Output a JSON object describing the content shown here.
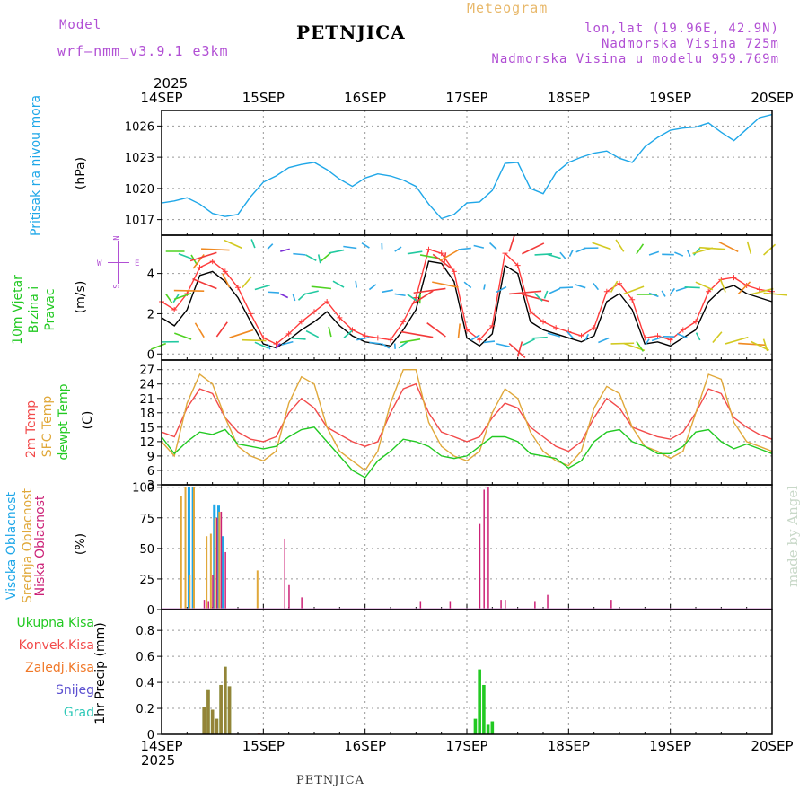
{
  "header": {
    "model_label": "Model",
    "model_name": "wrf—nmm_v3.9.1 e3km",
    "title": "PETNJICA",
    "meteogram_label": "Meteogram",
    "lonlat": "lon,lat (19.96E, 42.9N)",
    "altitude": "Nadmorska Visina 725m",
    "model_altitude": "Nadmorska Visina u modelu 959.769m",
    "year_top": "2025",
    "year_bottom": "2025",
    "footer_title": "PETNJICA",
    "credit": "made by Angel"
  },
  "dates": [
    "14SEP",
    "15SEP",
    "16SEP",
    "17SEP",
    "18SEP",
    "19SEP",
    "20SEP"
  ],
  "colors": {
    "pressure": "#1fa7e8",
    "wind_speed": "#000000",
    "wind_gust": "#ff3b3b",
    "t2m": "#f24a4a",
    "tsfc": "#e0a83a",
    "dewpoint": "#22c922",
    "high_cloud": "#1fa7e8",
    "mid_cloud": "#e0a83a",
    "low_cloud": "#cc2277",
    "total_precip": "#22c922",
    "conv_precip": "#f24a4a",
    "freezing": "#f07828",
    "snow": "#5b4fd0",
    "graupel": "#2fc9b8"
  },
  "chart_data": [
    {
      "type": "line",
      "panel": "pressure",
      "title": "Pritisak na nivou mora",
      "ylabel": "(hPa)",
      "x_unit": "hours since 14SEP 00UTC",
      "xlim": [
        0,
        144
      ],
      "ylim": [
        1015.5,
        1027.5
      ],
      "yticks": [
        1017,
        1020,
        1023,
        1026
      ],
      "series": [
        {
          "name": "MSLP",
          "x": [
            0,
            3,
            6,
            9,
            12,
            15,
            18,
            21,
            24,
            27,
            30,
            33,
            36,
            39,
            42,
            45,
            48,
            51,
            54,
            57,
            60,
            63,
            66,
            69,
            72,
            75,
            78,
            81,
            84,
            87,
            90,
            93,
            96,
            99,
            102,
            105,
            108,
            111,
            114,
            117,
            120,
            123,
            126,
            129,
            132,
            135,
            138,
            141,
            144
          ],
          "values": [
            1018.6,
            1018.8,
            1019.1,
            1018.5,
            1017.6,
            1017.3,
            1017.5,
            1019.2,
            1020.6,
            1021.2,
            1022.0,
            1022.3,
            1022.5,
            1021.8,
            1020.9,
            1020.2,
            1021.0,
            1021.4,
            1021.2,
            1020.8,
            1020.2,
            1018.5,
            1017.1,
            1017.5,
            1018.6,
            1018.7,
            1019.8,
            1022.4,
            1022.5,
            1020.0,
            1019.5,
            1021.5,
            1022.5,
            1023.0,
            1023.4,
            1023.6,
            1022.9,
            1022.5,
            1024.0,
            1024.9,
            1025.6,
            1025.8,
            1025.9,
            1026.3,
            1025.4,
            1024.6,
            1025.7,
            1026.8,
            1027.1
          ]
        }
      ]
    },
    {
      "type": "line",
      "panel": "wind",
      "title": "10m Vjetar Brzina i Pravac",
      "ylabel": "(m/s)",
      "compass": [
        "N",
        "W",
        "E",
        "S"
      ],
      "xlim": [
        0,
        144
      ],
      "ylim": [
        -0.3,
        5.9
      ],
      "yticks": [
        0,
        2,
        4
      ],
      "series": [
        {
          "name": "wind speed",
          "x": [
            0,
            3,
            6,
            9,
            12,
            15,
            18,
            21,
            24,
            27,
            30,
            33,
            36,
            39,
            42,
            45,
            48,
            51,
            54,
            57,
            60,
            63,
            66,
            69,
            72,
            75,
            78,
            81,
            84,
            87,
            90,
            93,
            96,
            99,
            102,
            105,
            108,
            111,
            114,
            117,
            120,
            123,
            126,
            129,
            132,
            135,
            138,
            141,
            144
          ],
          "values": [
            1.8,
            1.4,
            2.2,
            3.9,
            4.1,
            3.6,
            2.8,
            1.6,
            0.5,
            0.3,
            0.7,
            1.2,
            1.6,
            2.1,
            1.4,
            0.9,
            0.6,
            0.5,
            0.4,
            1.2,
            2.2,
            4.6,
            4.5,
            3.6,
            0.8,
            0.4,
            1.0,
            4.4,
            4.0,
            1.6,
            1.2,
            1.0,
            0.8,
            0.6,
            0.9,
            2.6,
            3.0,
            2.2,
            0.5,
            0.6,
            0.4,
            0.8,
            1.2,
            2.6,
            3.2,
            3.4,
            3.0,
            2.8,
            2.6
          ]
        },
        {
          "name": "wind gust",
          "x": [
            0,
            3,
            6,
            9,
            12,
            15,
            18,
            21,
            24,
            27,
            30,
            33,
            36,
            39,
            42,
            45,
            48,
            51,
            54,
            57,
            60,
            63,
            66,
            69,
            72,
            75,
            78,
            81,
            84,
            87,
            90,
            93,
            96,
            99,
            102,
            105,
            108,
            111,
            114,
            117,
            120,
            123,
            126,
            129,
            132,
            135,
            138,
            141,
            144
          ],
          "values": [
            2.6,
            2.2,
            3.0,
            4.3,
            4.6,
            4.1,
            3.3,
            2.0,
            0.8,
            0.5,
            1.0,
            1.6,
            2.1,
            2.6,
            1.8,
            1.2,
            0.9,
            0.8,
            0.7,
            1.6,
            2.8,
            5.2,
            5.0,
            4.1,
            1.2,
            0.7,
            1.4,
            5.0,
            4.4,
            2.1,
            1.6,
            1.3,
            1.1,
            0.9,
            1.3,
            3.1,
            3.5,
            2.7,
            0.8,
            0.9,
            0.7,
            1.2,
            1.6,
            3.1,
            3.7,
            3.8,
            3.4,
            3.2,
            3.1
          ]
        }
      ]
    },
    {
      "type": "line",
      "panel": "temperature",
      "labels": [
        "2m Temp",
        "SFC Temp",
        "dewpt Temp"
      ],
      "ylabel": "(C)",
      "xlim": [
        0,
        144
      ],
      "ylim": [
        3,
        29
      ],
      "yticks": [
        3,
        6,
        9,
        12,
        15,
        18,
        21,
        24,
        27
      ],
      "series": [
        {
          "name": "2m Temp",
          "x": [
            0,
            3,
            6,
            9,
            12,
            15,
            18,
            21,
            24,
            27,
            30,
            33,
            36,
            39,
            42,
            45,
            48,
            51,
            54,
            57,
            60,
            63,
            66,
            69,
            72,
            75,
            78,
            81,
            84,
            87,
            90,
            93,
            96,
            99,
            102,
            105,
            108,
            111,
            114,
            117,
            120,
            123,
            126,
            129,
            132,
            135,
            138,
            141,
            144
          ],
          "values": [
            14,
            13,
            19,
            23,
            22,
            17,
            14,
            12.5,
            12,
            13,
            18,
            21,
            19,
            15,
            13.5,
            12,
            11,
            12,
            18,
            23,
            24,
            18,
            14,
            13,
            12,
            13,
            17,
            20,
            19,
            15,
            13,
            11,
            10,
            12,
            17,
            21,
            19,
            15,
            14,
            13,
            12.5,
            14,
            18,
            23,
            22,
            17,
            15,
            13.5,
            12.5
          ]
        },
        {
          "name": "SFC Temp",
          "x": [
            0,
            3,
            6,
            9,
            12,
            15,
            18,
            21,
            24,
            27,
            30,
            33,
            36,
            39,
            42,
            45,
            48,
            51,
            54,
            57,
            60,
            63,
            66,
            69,
            72,
            75,
            78,
            81,
            84,
            87,
            90,
            93,
            96,
            99,
            102,
            105,
            108,
            111,
            114,
            117,
            120,
            123,
            126,
            129,
            132,
            135,
            138,
            141,
            144
          ],
          "values": [
            12,
            9,
            20,
            26,
            24,
            17,
            11,
            9,
            8,
            10,
            20,
            25.5,
            24,
            15,
            10,
            8,
            6,
            10,
            20,
            27,
            27,
            16,
            11,
            9,
            8,
            10,
            18,
            23,
            21,
            14,
            10,
            8,
            7,
            10,
            19,
            23.5,
            22,
            15,
            11,
            10,
            8.5,
            10,
            18,
            26,
            25,
            16,
            12,
            11,
            10
          ]
        },
        {
          "name": "dewpt Temp",
          "x": [
            0,
            3,
            6,
            9,
            12,
            15,
            18,
            21,
            24,
            27,
            30,
            33,
            36,
            39,
            42,
            45,
            48,
            51,
            54,
            57,
            60,
            63,
            66,
            69,
            72,
            75,
            78,
            81,
            84,
            87,
            90,
            93,
            96,
            99,
            102,
            105,
            108,
            111,
            114,
            117,
            120,
            123,
            126,
            129,
            132,
            135,
            138,
            141,
            144
          ],
          "values": [
            13,
            9.5,
            12,
            14,
            13.5,
            14.5,
            11.5,
            11,
            10.5,
            11,
            13,
            14.5,
            15,
            12,
            9,
            6,
            4.5,
            8,
            10,
            12.5,
            12,
            11,
            9,
            8.5,
            9,
            11,
            13,
            13,
            12,
            9.5,
            9,
            8.5,
            6.5,
            8,
            12,
            14,
            14.5,
            12,
            11,
            9.5,
            9.5,
            11,
            14,
            14.5,
            12,
            10.5,
            11.5,
            10.5,
            9.5
          ]
        }
      ]
    },
    {
      "type": "bar",
      "panel": "cloud",
      "labels": [
        "Visoka Oblacnost",
        "Srednja Oblacnost",
        "Niska Oblacnost"
      ],
      "ylabel": "(%)",
      "xlim": [
        0,
        144
      ],
      "ylim": [
        0,
        102
      ],
      "yticks": [
        0,
        25,
        50,
        75,
        100
      ],
      "series": [
        {
          "name": "Visoka Oblacnost",
          "x": [
            6,
            7,
            12,
            13,
            14
          ],
          "values": [
            100,
            100,
            86,
            85,
            60
          ]
        },
        {
          "name": "Srednja Oblacnost",
          "x": [
            5,
            6,
            7,
            8,
            11,
            12,
            13,
            14,
            23
          ],
          "values": [
            93,
            100,
            28,
            100,
            60,
            62,
            75,
            80,
            32
          ]
        },
        {
          "name": "Niska Oblacnost",
          "x": [
            10,
            11,
            12,
            13,
            14,
            15,
            29,
            30,
            33,
            61,
            68,
            75,
            76,
            77,
            80,
            81,
            88,
            91,
            106
          ],
          "values": [
            8,
            7,
            28,
            75,
            80,
            47,
            58,
            20,
            10,
            7,
            7,
            70,
            98,
            100,
            8,
            8,
            7,
            12,
            8
          ]
        }
      ]
    },
    {
      "type": "bar",
      "panel": "precipitation",
      "labels": [
        "Ukupna Kisa",
        "Konvek.Kisa",
        "Zaledj.Kisa",
        "Snijeg",
        "Grad"
      ],
      "ylabel": "1hr Precip (mm)",
      "xlim": [
        0,
        144
      ],
      "ylim": [
        0,
        0.96
      ],
      "yticks": [
        0,
        0.2,
        0.4,
        0.6,
        0.8
      ],
      "series": [
        {
          "name": "Ukupna Kisa",
          "x": [
            10,
            11,
            12,
            13,
            14,
            15,
            16,
            74,
            75,
            76,
            77,
            78
          ],
          "values": [
            0.21,
            0.34,
            0.19,
            0.12,
            0.38,
            0.52,
            0.37,
            0.12,
            0.5,
            0.38,
            0.08,
            0.1
          ]
        },
        {
          "name": "Konvek.Kisa",
          "x": [
            10,
            11,
            12,
            13,
            14,
            15,
            16,
            23
          ],
          "values": [
            0.21,
            0.34,
            0.19,
            0.12,
            0.38,
            0.52,
            0.37,
            0.01
          ]
        }
      ]
    }
  ]
}
